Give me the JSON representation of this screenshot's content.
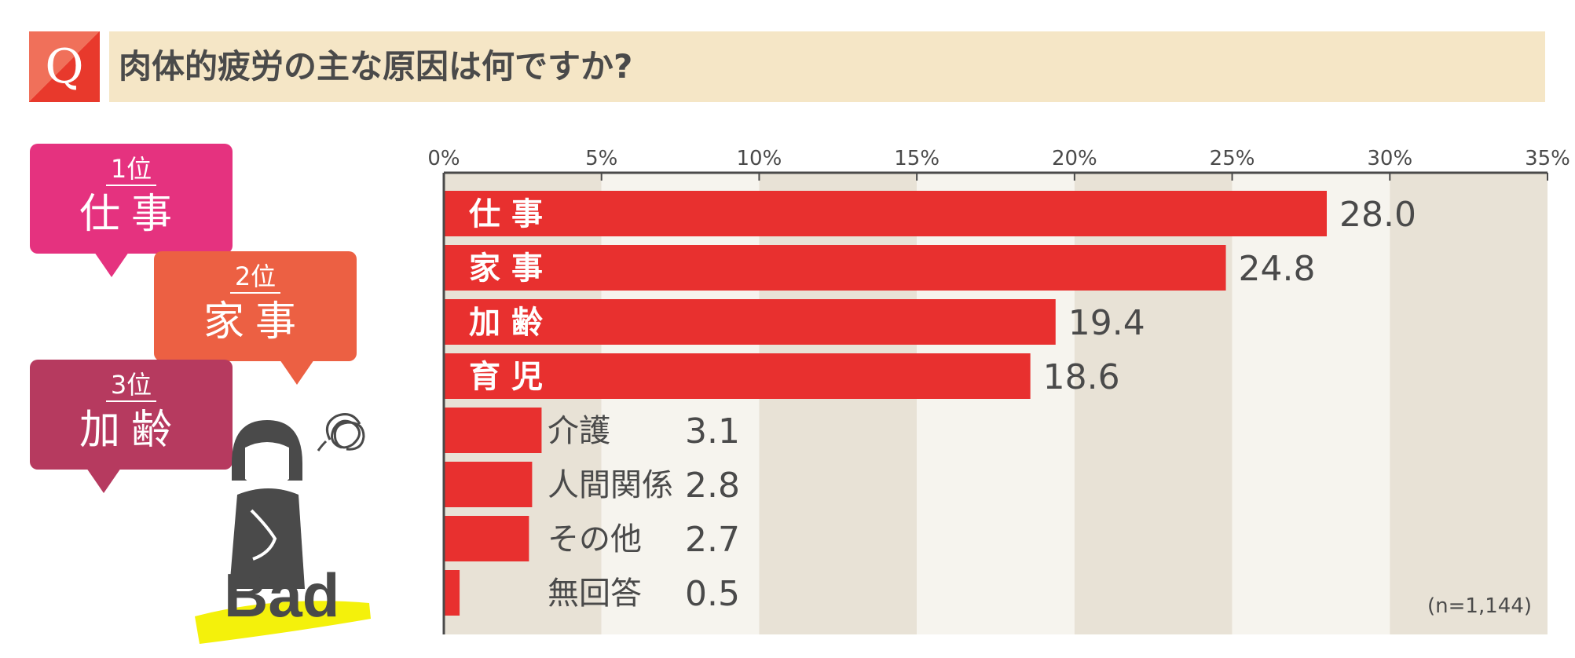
{
  "question": {
    "mark": "Q",
    "text": "肉体的疲労の主な原因は何ですか?"
  },
  "ranking": [
    {
      "rank": "1位",
      "name": "仕事",
      "color": "#e5327f"
    },
    {
      "rank": "2位",
      "name": "家事",
      "color": "#ec6043"
    },
    {
      "rank": "3位",
      "name": "加齢",
      "color": "#b63a5f"
    }
  ],
  "illustration_label": "Bad",
  "note": "(n=1,144)",
  "chart_data": {
    "type": "bar",
    "orientation": "horizontal",
    "categories": [
      "仕事",
      "家事",
      "加齢",
      "育児",
      "介護",
      "人間関係",
      "その他",
      "無回答"
    ],
    "values": [
      28.0,
      24.8,
      19.4,
      18.6,
      3.1,
      2.8,
      2.7,
      0.5
    ],
    "value_labels": [
      "28.0",
      "24.8",
      "19.4",
      "18.6",
      "3.1",
      "2.8",
      "2.7",
      "0.5"
    ],
    "xlim": [
      0,
      35
    ],
    "ticks": [
      0,
      5,
      10,
      15,
      20,
      25,
      30,
      35
    ],
    "tick_labels": [
      "0%",
      "5%",
      "10%",
      "15%",
      "20%",
      "25%",
      "30%",
      "35%"
    ],
    "bar_color": "#e8302f",
    "band_colors": [
      "#e8e2d6",
      "#f6f4ee"
    ]
  }
}
